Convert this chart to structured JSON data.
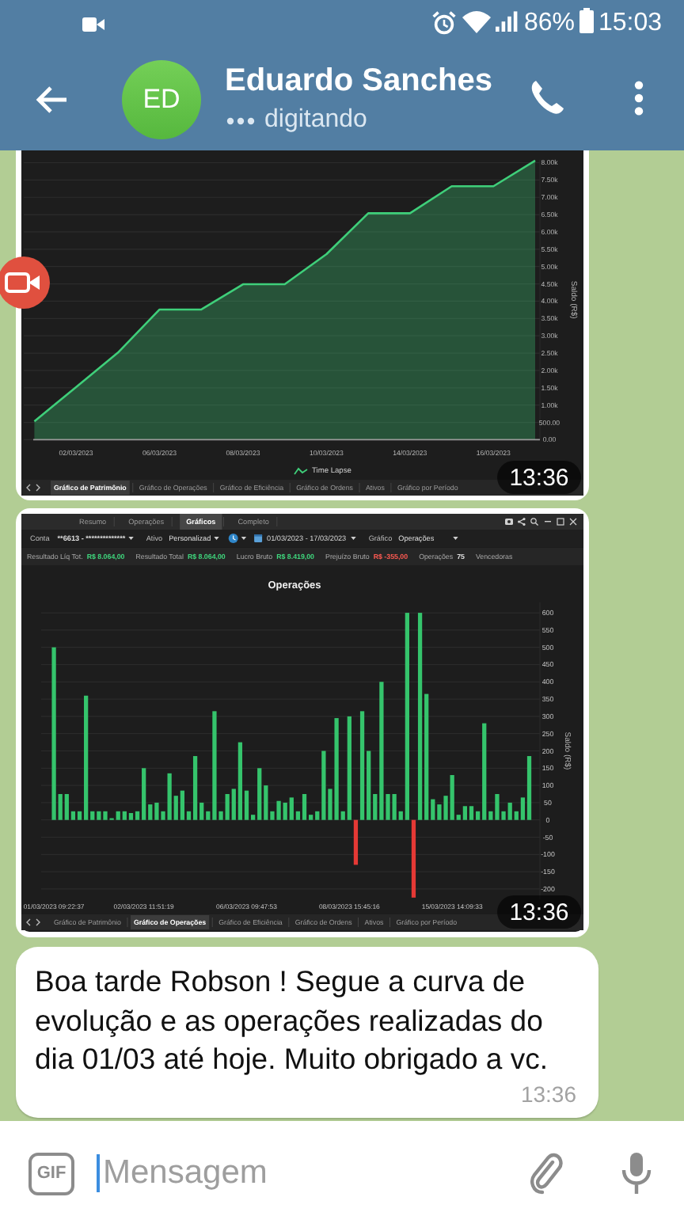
{
  "chart_data": [
    {
      "type": "other",
      "title": "Eduardo Sanches",
      "subtitle": "digitando",
      "annotations": [
        "86%",
        "15:03",
        "ED"
      ]
    },
    {
      "type": "area",
      "categories": [
        null,
        "02/03/2023",
        null,
        "06/03/2023",
        null,
        "08/03/2023",
        null,
        "10/03/2023",
        null,
        "14/03/2023",
        null,
        "16/03/2023",
        null
      ],
      "series": [
        {
          "name": "Time Lapse",
          "color": "#3fcf7a",
          "values": [
            530,
            1520,
            2510,
            3760,
            3760,
            4490,
            4490,
            5360,
            6540,
            6540,
            7320,
            7320,
            8060
          ]
        }
      ],
      "ylim": [
        0,
        8080
      ],
      "yticks": [
        {
          "value": 0,
          "label": "0.00"
        },
        {
          "value": 500,
          "label": "500.00"
        },
        {
          "value": 1000,
          "label": "1.00k"
        },
        {
          "value": 1500,
          "label": "1.50k"
        },
        {
          "value": 2000,
          "label": "2.00k"
        },
        {
          "value": 2500,
          "label": "2.50k"
        },
        {
          "value": 3000,
          "label": "3.00k"
        },
        {
          "value": 3500,
          "label": "3.50k"
        },
        {
          "value": 4000,
          "label": "4.00k"
        },
        {
          "value": 4500,
          "label": "4.50k"
        },
        {
          "value": 5000,
          "label": "5.00k"
        },
        {
          "value": 5500,
          "label": "5.50k"
        },
        {
          "value": 6000,
          "label": "6.00k"
        },
        {
          "value": 6500,
          "label": "6.50k"
        },
        {
          "value": 7000,
          "label": "7.00k"
        },
        {
          "value": 7500,
          "label": "7.50k"
        },
        {
          "value": 8000,
          "label": "8.00k"
        }
      ],
      "ylabel": "Saldo (R$)",
      "grid": "y",
      "legend": "bottom",
      "annotations": [
        "Gráfico de Patrimônio",
        "Gráfico de Operações",
        "Gráfico de Eficiência",
        "Gráfico de Ordens",
        "Ativos",
        "Gráfico por Período",
        "13:36"
      ]
    },
    {
      "type": "bar",
      "title": "Operações",
      "categories": [
        "01/03/2023 09:22:37",
        null,
        null,
        null,
        null,
        null,
        null,
        null,
        null,
        null,
        null,
        null,
        null,
        null,
        "02/03/2023 11:51:19",
        null,
        null,
        null,
        null,
        null,
        null,
        null,
        null,
        null,
        null,
        null,
        null,
        null,
        null,
        null,
        "06/03/2023 09:47:53",
        null,
        null,
        null,
        null,
        null,
        null,
        null,
        null,
        null,
        null,
        null,
        null,
        null,
        null,
        null,
        "08/03/2023 15:45:16",
        null,
        null,
        null,
        null,
        null,
        null,
        null,
        null,
        null,
        null,
        null,
        null,
        null,
        null,
        null,
        "15/03/2023 14:09:33",
        null,
        null,
        null,
        null,
        null,
        null,
        null,
        null,
        null,
        null,
        null,
        null
      ],
      "values": [
        500,
        75,
        75,
        25,
        25,
        360,
        25,
        25,
        25,
        5,
        25,
        25,
        20,
        25,
        150,
        45,
        50,
        25,
        135,
        70,
        85,
        25,
        185,
        50,
        25,
        315,
        25,
        75,
        90,
        225,
        85,
        15,
        150,
        100,
        25,
        55,
        50,
        65,
        25,
        75,
        15,
        25,
        200,
        90,
        295,
        25,
        300,
        -130,
        315,
        200,
        75,
        400,
        75,
        75,
        25,
        600,
        -225,
        600,
        365,
        60,
        45,
        70,
        130,
        15,
        40,
        40,
        25,
        280,
        25,
        75,
        25,
        50,
        25,
        65,
        185
      ],
      "colors": [
        "#35c46c",
        "#35c46c",
        "#35c46c",
        "#35c46c",
        "#35c46c",
        "#35c46c",
        "#35c46c",
        "#35c46c",
        "#35c46c",
        "#35c46c",
        "#35c46c",
        "#35c46c",
        "#35c46c",
        "#35c46c",
        "#35c46c",
        "#35c46c",
        "#35c46c",
        "#35c46c",
        "#35c46c",
        "#35c46c",
        "#35c46c",
        "#35c46c",
        "#35c46c",
        "#35c46c",
        "#35c46c",
        "#35c46c",
        "#35c46c",
        "#35c46c",
        "#35c46c",
        "#35c46c",
        "#35c46c",
        "#35c46c",
        "#35c46c",
        "#35c46c",
        "#35c46c",
        "#35c46c",
        "#35c46c",
        "#35c46c",
        "#35c46c",
        "#35c46c",
        "#35c46c",
        "#35c46c",
        "#35c46c",
        "#35c46c",
        "#35c46c",
        "#35c46c",
        "#35c46c",
        "#e53935",
        "#35c46c",
        "#35c46c",
        "#35c46c",
        "#35c46c",
        "#35c46c",
        "#35c46c",
        "#35c46c",
        "#35c46c",
        "#e53935",
        "#35c46c",
        "#35c46c",
        "#35c46c",
        "#35c46c",
        "#35c46c",
        "#35c46c",
        "#35c46c",
        "#35c46c",
        "#35c46c",
        "#35c46c",
        "#35c46c",
        "#35c46c",
        "#35c46c",
        "#35c46c",
        "#35c46c",
        "#35c46c",
        "#35c46c",
        "#35c46c"
      ],
      "ylim": [
        -230,
        630
      ],
      "yticks": [
        -200,
        -150,
        -100,
        -50,
        0,
        50,
        100,
        150,
        200,
        250,
        300,
        350,
        400,
        450,
        500,
        550,
        600
      ],
      "ylabel": "Saldo (R$)",
      "grid": "y",
      "annotations": [
        "Resumo",
        "Operações",
        "Gráficos",
        "Completo",
        "Conta",
        "**6613 - **************",
        "Ativo",
        "Personalizad",
        "01/03/2023 - 17/03/2023",
        "Gráfico",
        "Operações",
        "Resultado Líq Tot.",
        "R$ 8.064,00",
        "Resultado Total",
        "R$ 8.064,00",
        "Lucro Bruto",
        "R$ 8.419,00",
        "Prejuízo Bruto",
        "R$ -355,00",
        "Operações",
        "75",
        "Vencedoras",
        "Gráfico de Patrimônio",
        "Gráfico de Operações",
        "Gráfico de Eficiência",
        "Gráfico de Ordens",
        "Ativos",
        "Gráfico por Período",
        "13:36"
      ]
    },
    {
      "type": "other",
      "annotations": [
        "Boa tarde Robson ! Segue a curva de evolução e as operações realizadas do dia 01/03 até hoje. Muito obrigado a vc.",
        "13:36",
        "GIF",
        "Mensagem"
      ]
    }
  ]
}
